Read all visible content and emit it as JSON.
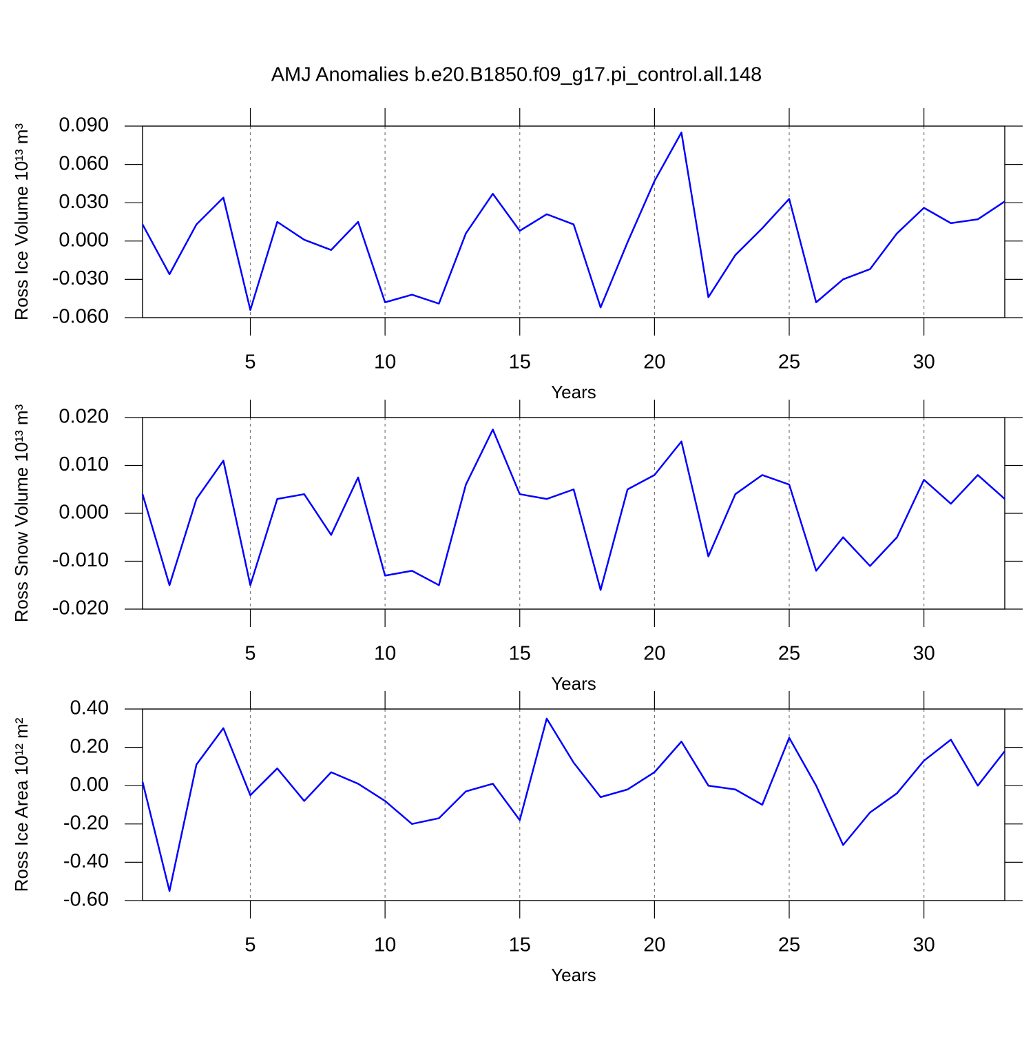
{
  "chart_data": [
    {
      "type": "line",
      "title": "AMJ Anomalies b.e20.B1850.f09_g17.pi_control.all.148",
      "y_label": "Ross Ice Volume 10¹³ m³",
      "x_label": "Years",
      "color": "#0000ff",
      "grid": true,
      "x": [
        1,
        2,
        3,
        4,
        5,
        6,
        7,
        8,
        9,
        10,
        11,
        12,
        13,
        14,
        15,
        16,
        17,
        18,
        19,
        20,
        21,
        22,
        23,
        24,
        25,
        26,
        27,
        28,
        29,
        30,
        31,
        32,
        33
      ],
      "values": [
        0.013,
        -0.026,
        0.013,
        0.034,
        -0.054,
        0.015,
        0.001,
        -0.007,
        0.015,
        -0.048,
        -0.042,
        -0.049,
        0.006,
        0.037,
        0.008,
        0.021,
        0.013,
        -0.052,
        -0.001,
        0.047,
        0.085,
        -0.044,
        -0.011,
        0.01,
        0.033,
        -0.048,
        -0.03,
        -0.022,
        0.006,
        0.026,
        0.014,
        0.017,
        0.031
      ],
      "xlim": [
        1,
        33
      ],
      "xticks": [
        5,
        10,
        15,
        20,
        25,
        30
      ],
      "ylim": [
        -0.06,
        0.09
      ],
      "yticks": [
        {
          "value": -0.06,
          "label": "-0.060"
        },
        {
          "value": -0.03,
          "label": "-0.030"
        },
        {
          "value": 0,
          "label": "0.000"
        },
        {
          "value": 0.03,
          "label": "0.030"
        },
        {
          "value": 0.06,
          "label": "0.060"
        },
        {
          "value": 0.09,
          "label": "0.090"
        }
      ]
    },
    {
      "type": "line",
      "y_label": "Ross Snow Volume 10¹³ m³",
      "x_label": "Years",
      "color": "#0000ff",
      "grid": true,
      "x": [
        1,
        2,
        3,
        4,
        5,
        6,
        7,
        8,
        9,
        10,
        11,
        12,
        13,
        14,
        15,
        16,
        17,
        18,
        19,
        20,
        21,
        22,
        23,
        24,
        25,
        26,
        27,
        28,
        29,
        30,
        31,
        32,
        33
      ],
      "values": [
        0.004,
        -0.015,
        0.003,
        0.011,
        -0.015,
        0.003,
        0.004,
        -0.0045,
        0.0075,
        -0.013,
        -0.012,
        -0.015,
        0.006,
        0.0175,
        0.004,
        0.003,
        0.005,
        -0.016,
        0.005,
        0.008,
        0.015,
        -0.009,
        0.004,
        0.008,
        0.006,
        -0.012,
        -0.005,
        -0.011,
        -0.005,
        0.007,
        0.002,
        0.008,
        0.003
      ],
      "xlim": [
        1,
        33
      ],
      "xticks": [
        5,
        10,
        15,
        20,
        25,
        30
      ],
      "ylim": [
        -0.02,
        0.02
      ],
      "yticks": [
        {
          "value": -0.02,
          "label": "-0.020"
        },
        {
          "value": -0.01,
          "label": "-0.010"
        },
        {
          "value": 0,
          "label": "0.000"
        },
        {
          "value": 0.01,
          "label": "0.010"
        },
        {
          "value": 0.02,
          "label": "0.020"
        }
      ]
    },
    {
      "type": "line",
      "y_label": "Ross Ice Area 10¹² m²",
      "x_label": "Years",
      "color": "#0000ff",
      "grid": true,
      "x": [
        1,
        2,
        3,
        4,
        5,
        6,
        7,
        8,
        9,
        10,
        11,
        12,
        13,
        14,
        15,
        16,
        17,
        18,
        19,
        20,
        21,
        22,
        23,
        24,
        25,
        26,
        27,
        28,
        29,
        30,
        31,
        32,
        33
      ],
      "values": [
        0.02,
        -0.55,
        0.11,
        0.3,
        -0.05,
        0.09,
        -0.08,
        0.07,
        0.01,
        -0.08,
        -0.2,
        -0.17,
        -0.03,
        0.01,
        -0.18,
        0.35,
        0.12,
        -0.06,
        -0.02,
        0.07,
        0.23,
        0.0,
        -0.02,
        -0.1,
        0.25,
        0.0,
        -0.31,
        -0.14,
        -0.04,
        0.13,
        0.24,
        0.0,
        0.18
      ],
      "xlim": [
        1,
        33
      ],
      "xticks": [
        5,
        10,
        15,
        20,
        25,
        30
      ],
      "ylim": [
        -0.6,
        0.4
      ],
      "yticks": [
        {
          "value": -0.6,
          "label": "-0.60"
        },
        {
          "value": -0.4,
          "label": "-0.40"
        },
        {
          "value": -0.2,
          "label": "-0.20"
        },
        {
          "value": 0,
          "label": "0.00"
        },
        {
          "value": 0.2,
          "label": "0.20"
        },
        {
          "value": 0.4,
          "label": "0.40"
        }
      ]
    }
  ]
}
